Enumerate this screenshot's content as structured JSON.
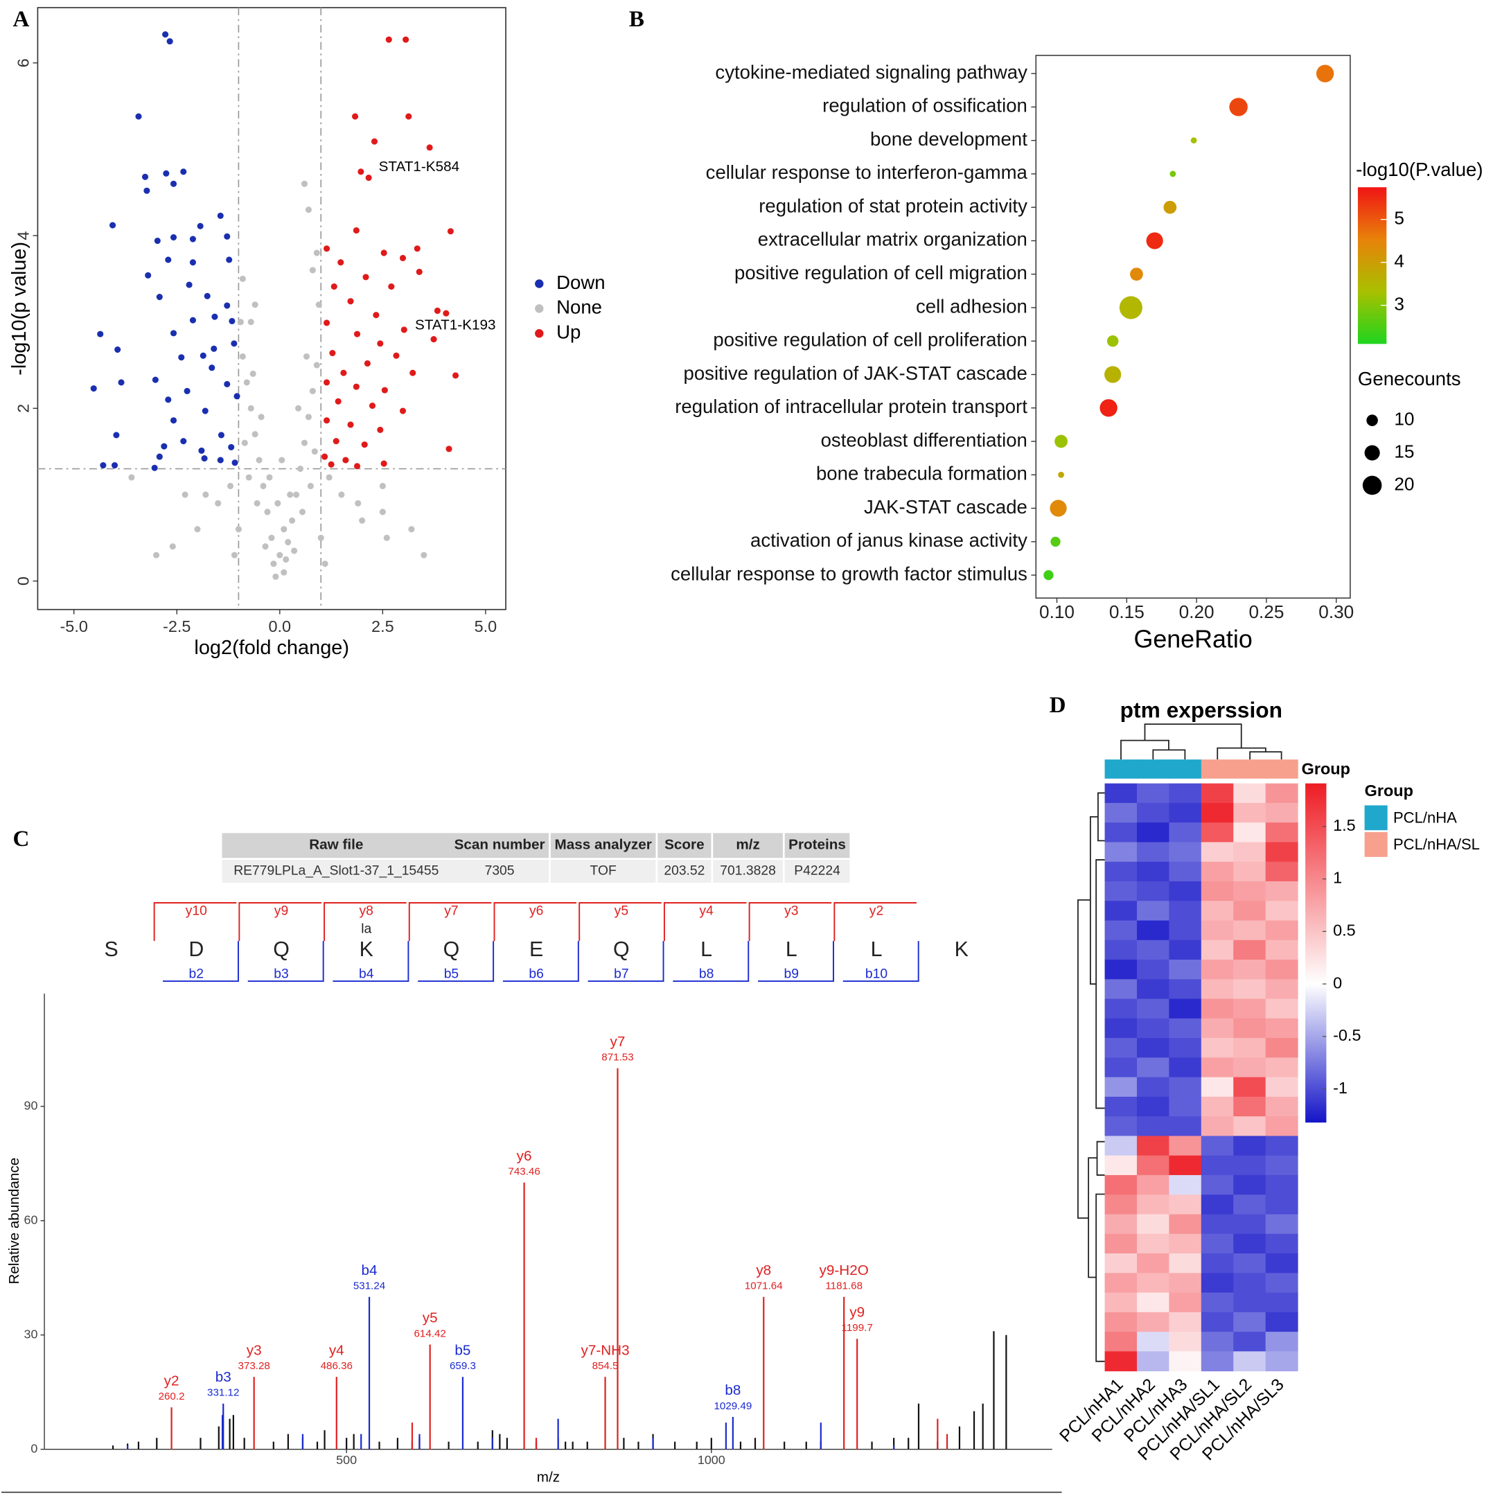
{
  "chart_data": [
    {
      "type": "scatter",
      "label": "A",
      "xlabel": "log2(fold change)",
      "ylabel": "-log10(p value)",
      "xlim": [
        -5.88,
        5.49
      ],
      "ylim": [
        -0.33,
        6.64
      ],
      "xticks": [
        {
          "value": -5,
          "label": "-5.0"
        },
        -2.5,
        {
          "value": 0,
          "label": "0.0"
        },
        2.5,
        {
          "value": 5,
          "label": "5.0"
        }
      ],
      "yticks": [
        0,
        2,
        4,
        6
      ],
      "vlines": [
        -1,
        1
      ],
      "hline": 1.3,
      "annotations": [
        "STAT1-K584",
        "STAT1-K193"
      ],
      "series": [
        {
          "name": "Down",
          "color": "#1a2fb0",
          "x": [
            -2.78,
            -2.67,
            -3.43,
            -3.27,
            -3.23,
            -2.76,
            -2.34,
            -2.58,
            -4.06,
            -1.44,
            -1.93,
            -1.28,
            -2.58,
            -2.11,
            -2.97,
            -2.71,
            -2.11,
            -1.23,
            -3.2,
            -2.2,
            -1.76,
            -2.92,
            -1.28,
            -1.58,
            -2.11,
            -4.36,
            -1.16,
            -2.58,
            -1.6,
            -3.94,
            -1.86,
            -2.39,
            -1.11,
            -3.85,
            -3.02,
            -4.52,
            -1.65,
            -2.25,
            -2.71,
            -1.28,
            -1.81,
            -1.04,
            -2.58,
            -3.97,
            -1.42,
            -2.81,
            -2.34,
            -1.9,
            -1.18,
            -2.92,
            -1.83,
            -4.29,
            -4.01,
            -1.44,
            -3.04,
            -1.09
          ],
          "values": [
            6.33,
            6.25,
            5.38,
            4.68,
            4.52,
            4.72,
            4.74,
            4.6,
            4.12,
            4.23,
            4.11,
            3.99,
            3.98,
            3.96,
            3.94,
            3.72,
            3.69,
            3.72,
            3.54,
            3.43,
            3.3,
            3.29,
            3.19,
            3.06,
            3.02,
            2.86,
            3.01,
            2.87,
            2.69,
            2.68,
            2.61,
            2.59,
            2.75,
            2.3,
            2.33,
            2.23,
            2.47,
            2.2,
            2.1,
            2.28,
            1.97,
            2.14,
            1.86,
            1.69,
            1.69,
            1.56,
            1.62,
            1.51,
            1.55,
            1.44,
            1.42,
            1.34,
            1.34,
            1.4,
            1.31,
            1.37
          ]
        },
        {
          "name": "None",
          "color": "#c0c0c0",
          "x": [
            -0.1,
            0.1,
            0,
            -0.2,
            0.2,
            -0.3,
            0.3,
            -0.4,
            0.4,
            -0.5,
            0.5,
            -0.6,
            0.6,
            -0.7,
            0.7,
            -0.8,
            0.8,
            -0.9,
            0.9,
            -0.35,
            0.35,
            -0.55,
            0.55,
            -0.75,
            0.75,
            -0.85,
            0.85,
            -0.95,
            0.95,
            -0.65,
            0.65,
            -0.45,
            0.45,
            -0.25,
            0.25,
            -0.15,
            0.15,
            -1.5,
            1.5,
            -2,
            2,
            -2.6,
            2.6,
            -3,
            3.2,
            -1.2,
            1.2,
            -1.8,
            1.9,
            -0.9,
            0.9,
            -0.7,
            0.7,
            0.6,
            0.8,
            0.1,
            -0.05,
            0.05,
            -2.3,
            2.5,
            -3.6,
            1,
            -1,
            -1.1,
            1.1,
            2.5,
            3.5,
            -0.6
          ],
          "values": [
            0.05,
            0.1,
            0.3,
            0.5,
            0.45,
            0.8,
            0.7,
            1.1,
            1,
            1.4,
            1.3,
            1.7,
            1.6,
            2,
            1.9,
            2.3,
            2.2,
            2.6,
            2.5,
            0.4,
            0.35,
            0.9,
            0.8,
            1.2,
            1.1,
            1.6,
            1.5,
            3,
            3.2,
            2.4,
            2.6,
            1.9,
            2,
            1.2,
            1,
            0.2,
            0.25,
            0.9,
            1,
            0.6,
            0.7,
            0.4,
            0.5,
            0.3,
            0.6,
            1.1,
            1.2,
            1,
            0.9,
            3.5,
            3.8,
            3,
            4.3,
            4.6,
            3.6,
            0.6,
            0.9,
            1.4,
            1,
            1.1,
            1.2,
            0.5,
            0.6,
            0.3,
            0.2,
            0.8,
            0.3,
            3.2
          ]
        },
        {
          "name": "Up",
          "color": "#e01a1a",
          "x": [
            2.65,
            3.06,
            1.83,
            3.13,
            2.3,
            3.64,
            1.97,
            2.16,
            4.15,
            1.86,
            1.14,
            2.53,
            3.34,
            1.48,
            2.99,
            2.09,
            3.39,
            1.32,
            2.71,
            1.72,
            3.83,
            4.04,
            2.34,
            1.14,
            3.02,
            1.88,
            3.74,
            2.44,
            1.28,
            2.83,
            2.13,
            1.55,
            4.27,
            3.23,
            1.14,
            1.86,
            2.55,
            1.42,
            2.25,
            2.99,
            1.14,
            1.72,
            2.44,
            1.37,
            2.06,
            4.11,
            1.09,
            1.6,
            2.53,
            1.25,
            1.88
          ],
          "values": [
            6.27,
            6.27,
            5.38,
            5.38,
            5.09,
            5.02,
            4.74,
            4.67,
            4.05,
            4.06,
            3.85,
            3.8,
            3.85,
            3.69,
            3.74,
            3.52,
            3.58,
            3.41,
            3.41,
            3.24,
            3.13,
            3.1,
            3.08,
            2.99,
            2.91,
            2.86,
            2.8,
            2.75,
            2.64,
            2.61,
            2.52,
            2.41,
            2.38,
            2.41,
            2.3,
            2.25,
            2.21,
            2.08,
            2.03,
            1.97,
            1.86,
            1.81,
            1.75,
            1.62,
            1.58,
            1.53,
            1.44,
            1.4,
            1.36,
            1.35,
            1.33
          ]
        }
      ]
    },
    {
      "type": "dot",
      "label": "B",
      "xlabel": "GeneRatio",
      "categories": [
        "cytokine-mediated signaling pathway",
        "regulation of ossification",
        "bone development",
        "cellular response to interferon-gamma",
        "regulation of stat protein activity",
        "extracellular matrix organization",
        "positive regulation of cell migration",
        "cell adhesion",
        "positive regulation of cell proliferation",
        "positive regulation of JAK-STAT cascade",
        "regulation of intracellular protein transport",
        "osteoblast differentiation",
        "bone trabecula formation",
        "JAK-STAT cascade",
        "activation of janus kinase activity",
        "cellular response to growth factor stimulus"
      ],
      "values": [
        0.292,
        0.23,
        0.198,
        0.183,
        0.181,
        0.17,
        0.157,
        0.153,
        0.14,
        0.14,
        0.137,
        0.103,
        0.103,
        0.101,
        0.099,
        0.094
      ],
      "sizes": [
        18,
        19,
        3,
        3,
        12,
        17,
        12,
        25,
        10,
        17,
        18,
        12,
        3,
        17,
        8,
        8
      ],
      "color_values": [
        4.7,
        5.2,
        3.3,
        2.9,
        4.0,
        5.5,
        4.4,
        3.5,
        3.2,
        3.6,
        5.6,
        3.2,
        3.8,
        4.4,
        2.6,
        2.4
      ],
      "xlim": [
        0.085,
        0.31
      ],
      "xticks": [
        {
          "value": 0.1,
          "label": "0.10"
        },
        0.15,
        {
          "value": 0.2,
          "label": "0.20"
        },
        0.25,
        {
          "value": 0.3,
          "label": "0.30"
        }
      ],
      "color_title": "-log10(P.value)",
      "clim": [
        2.1,
        5.75
      ],
      "cticks": [
        3,
        4,
        5
      ],
      "colormap": [
        "#1ed41e",
        "#a8c000",
        "#e8820a",
        "#f01414"
      ],
      "size_title": "Genecounts",
      "size_legend": [
        10,
        15,
        20
      ]
    },
    {
      "type": "spectrum",
      "label": "C",
      "xlabel": "m/z",
      "ylabel": "Relative abundance",
      "xlim": [
        86,
        1467
      ],
      "ylim": [
        0,
        119.6
      ],
      "xticks": [
        500,
        1000
      ],
      "yticks": [
        0,
        30,
        60,
        90
      ],
      "table": {
        "header": [
          "Raw file",
          "Scan number",
          "Mass analyzer",
          "Score",
          "m/z",
          "Proteins"
        ],
        "rows": [
          [
            "RE779LPLa_A_Slot1-37_1_15455",
            7305,
            "TOF",
            203.52,
            701.3828,
            "P42224"
          ]
        ]
      },
      "sequence": {
        "residues": [
          "S",
          "D",
          "Q",
          "K",
          "Q",
          "E",
          "Q",
          "L",
          "L",
          "L",
          "K"
        ],
        "y_ions": [
          null,
          "y10",
          "y9",
          "y8",
          "y7",
          "y6",
          "y5",
          "y4",
          "y3",
          "y2",
          null
        ],
        "b_ions": [
          null,
          "b2",
          "b3",
          "b4",
          "b5",
          "b6",
          "b7",
          "b8",
          "b9",
          "b10",
          null
        ],
        "modifications": [
          null,
          null,
          null,
          "la",
          null,
          null,
          null,
          null,
          null,
          null,
          null
        ]
      },
      "series": [
        {
          "color": "#111111",
          "x": [
            180,
            200,
            215,
            240,
            300,
            325,
            340,
            345,
            360,
            400,
            420,
            440,
            460,
            470,
            500,
            510,
            545,
            570,
            590,
            600,
            640,
            680,
            700,
            710,
            720,
            760,
            790,
            800,
            810,
            830,
            880,
            900,
            920,
            950,
            980,
            1000,
            1040,
            1060,
            1100,
            1130,
            1150,
            1220,
            1250,
            1270,
            1284,
            1310,
            1340,
            1360,
            1372,
            1387,
            1404
          ],
          "values": [
            1,
            1.5,
            2,
            3,
            3,
            6,
            8,
            9,
            3,
            2,
            4,
            3,
            2,
            5,
            3,
            4,
            2,
            3,
            2,
            3,
            2,
            2,
            5,
            4,
            3,
            2,
            3,
            2,
            2,
            2,
            3,
            2,
            4,
            2,
            2,
            3,
            2,
            3,
            2,
            2,
            2,
            2,
            3,
            3,
            12,
            2,
            6,
            10,
            12,
            31,
            30
          ]
        },
        {
          "color": "#1a2ad0",
          "x": [
            200,
            330,
            440,
            520,
            600,
            700,
            790,
            920,
            1020,
            1150,
            1250
          ],
          "values": [
            1,
            9,
            4,
            4,
            4,
            3,
            8,
            3,
            7,
            7,
            1
          ]
        },
        {
          "color": "#e02020",
          "x": [
            590,
            760,
            1310,
            1323
          ],
          "values": [
            7,
            3,
            8,
            4
          ]
        },
        {
          "color": "#1a2ad0",
          "labels": [
            "b3",
            "b4",
            "b5",
            "b8"
          ],
          "x": [
            331.12,
            531.24,
            659.3,
            1029.49
          ],
          "values": [
            12,
            40,
            19,
            8.5
          ]
        },
        {
          "color": "#e02020",
          "labels": [
            "y2",
            "y3",
            "y4",
            "y5",
            "y6",
            "y7-NH3",
            "y7",
            "y8",
            "y9-H2O",
            "y9"
          ],
          "x": [
            260.2,
            373.28,
            486.36,
            614.42,
            743.46,
            854.5,
            871.53,
            1071.64,
            1181.68,
            1199.7
          ],
          "values": [
            11,
            19,
            19,
            27.5,
            70,
            19,
            100,
            40,
            40,
            29
          ]
        }
      ]
    },
    {
      "type": "heatmap",
      "label": "D",
      "title": "ptm experssion",
      "columns": [
        "PCL/nHA1",
        "PCL/nHA2",
        "PCL/nHA3",
        "PCL/nHA/SL1",
        "PCL/nHA/SL2",
        "PCL/nHA/SL3"
      ],
      "column_groups": [
        "PCL/nHA",
        "PCL/nHA",
        "PCL/nHA",
        "PCL/nHA/SL",
        "PCL/nHA/SL",
        "PCL/nHA/SL"
      ],
      "group_title": "Group",
      "groups": [
        {
          "name": "PCL/nHA",
          "color": "#1fa8cc"
        },
        {
          "name": "PCL/nHA/SL",
          "color": "#f7a08e"
        }
      ],
      "zlim": [
        -1.32,
        1.91
      ],
      "zticks": [
        -1,
        -0.5,
        0,
        0.5,
        1,
        1.5
      ],
      "colors": [
        "#1414c8",
        "#ffffff",
        "#ee1c24"
      ],
      "matrix": [
        [
          -1.1,
          -0.9,
          -1.0,
          1.6,
          0.3,
          0.9
        ],
        [
          -0.8,
          -1.0,
          -1.1,
          1.8,
          0.6,
          0.7
        ],
        [
          -1.0,
          -1.2,
          -0.9,
          1.4,
          0.2,
          1.2
        ],
        [
          -0.7,
          -0.9,
          -0.8,
          0.4,
          0.5,
          1.6
        ],
        [
          -1.0,
          -1.1,
          -0.9,
          0.8,
          0.6,
          1.3
        ],
        [
          -0.9,
          -1.0,
          -1.1,
          0.9,
          0.8,
          0.7
        ],
        [
          -1.1,
          -0.8,
          -1.0,
          0.6,
          0.9,
          0.5
        ],
        [
          -0.9,
          -1.2,
          -1.0,
          0.7,
          0.6,
          0.8
        ],
        [
          -1.0,
          -0.9,
          -1.1,
          0.5,
          1.1,
          0.6
        ],
        [
          -1.2,
          -1.0,
          -0.8,
          0.8,
          0.7,
          0.9
        ],
        [
          -0.8,
          -1.1,
          -1.0,
          0.6,
          0.5,
          0.7
        ],
        [
          -1.0,
          -0.9,
          -1.2,
          0.9,
          0.8,
          0.5
        ],
        [
          -1.1,
          -1.0,
          -0.9,
          0.7,
          0.9,
          0.8
        ],
        [
          -0.9,
          -1.1,
          -1.0,
          0.5,
          0.6,
          1.0
        ],
        [
          -1.0,
          -0.8,
          -1.1,
          0.8,
          0.7,
          0.6
        ],
        [
          -0.6,
          -1.0,
          -0.9,
          0.2,
          1.5,
          0.4
        ],
        [
          -1.0,
          -1.1,
          -0.9,
          0.6,
          1.2,
          0.7
        ],
        [
          -0.9,
          -1.0,
          -1.0,
          0.7,
          0.5,
          0.8
        ],
        [
          -0.3,
          1.6,
          0.9,
          -0.9,
          -1.1,
          -1.0
        ],
        [
          0.2,
          1.2,
          1.8,
          -1.0,
          -1.0,
          -0.9
        ],
        [
          1.2,
          0.8,
          -0.2,
          -0.9,
          -1.1,
          -1.0
        ],
        [
          1.0,
          0.6,
          0.5,
          -1.1,
          -0.9,
          -1.0
        ],
        [
          0.7,
          0.3,
          0.9,
          -1.0,
          -1.0,
          -0.8
        ],
        [
          0.9,
          0.5,
          0.6,
          -0.9,
          -1.1,
          -1.0
        ],
        [
          0.4,
          0.8,
          0.3,
          -1.0,
          -0.9,
          -1.1
        ],
        [
          0.8,
          0.6,
          0.7,
          -1.1,
          -1.0,
          -0.9
        ],
        [
          0.6,
          0.2,
          0.8,
          -0.9,
          -1.0,
          -1.0
        ],
        [
          0.9,
          0.7,
          0.4,
          -1.0,
          -0.8,
          -1.1
        ],
        [
          1.1,
          -0.2,
          0.3,
          -0.8,
          -1.0,
          -0.6
        ],
        [
          1.8,
          -0.4,
          0.1,
          -0.7,
          -0.3,
          -0.5
        ]
      ]
    }
  ]
}
